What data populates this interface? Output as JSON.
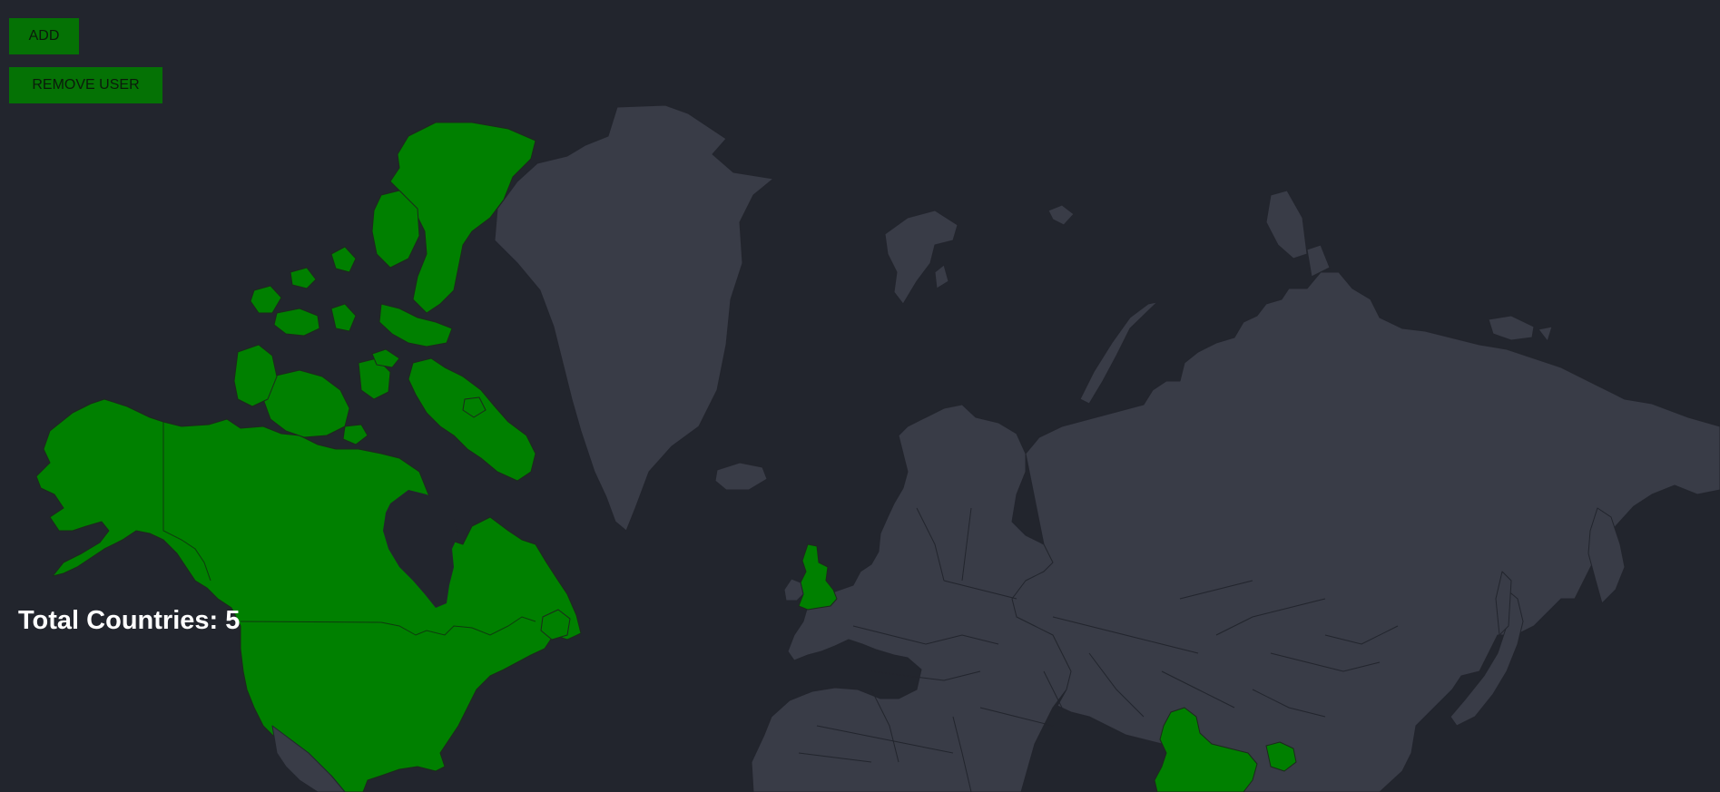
{
  "buttons": {
    "add_label": "ADD",
    "remove_label": "REMOVE USER"
  },
  "summary": {
    "prefix": "Total Countries: ",
    "count": "5"
  },
  "colors": {
    "background": "#22252d",
    "land": "#393c47",
    "visited": "#008000",
    "button": "#057205"
  }
}
